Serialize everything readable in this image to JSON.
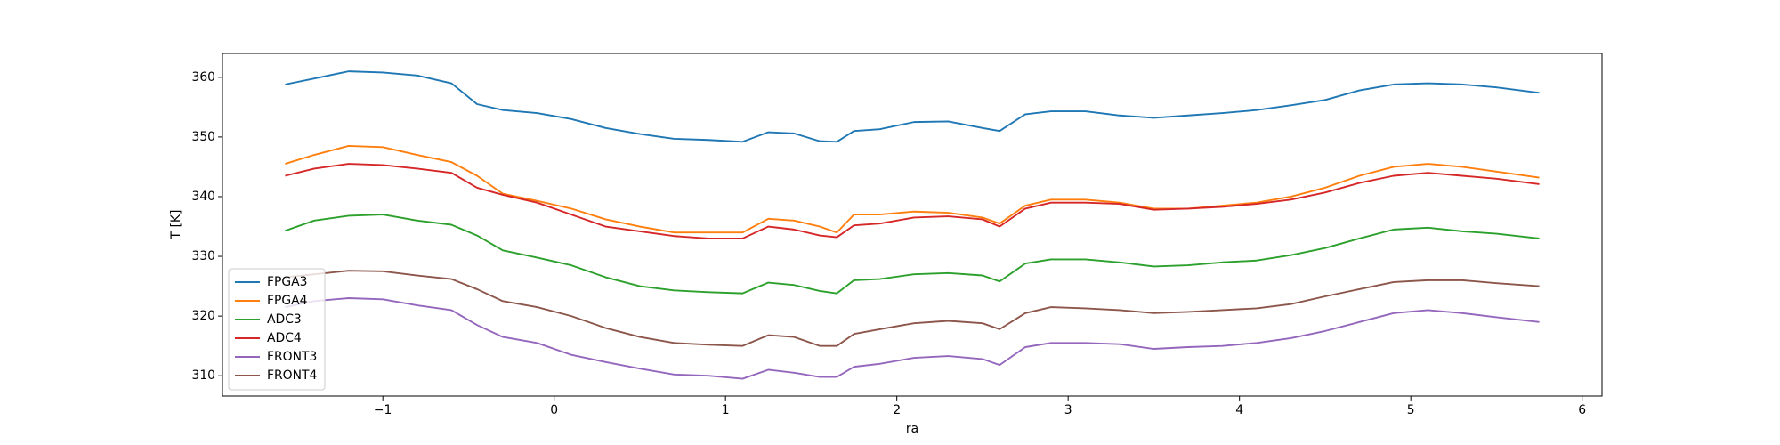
{
  "chart_data": {
    "type": "line",
    "xlabel": "ra",
    "ylabel": "T [K]",
    "x": [
      -1.57,
      -1.4,
      -1.2,
      -1.0,
      -0.8,
      -0.6,
      -0.45,
      -0.3,
      -0.1,
      0.1,
      0.3,
      0.5,
      0.7,
      0.9,
      1.1,
      1.25,
      1.4,
      1.55,
      1.65,
      1.75,
      1.9,
      2.1,
      2.3,
      2.5,
      2.6,
      2.75,
      2.9,
      3.1,
      3.3,
      3.5,
      3.7,
      3.9,
      4.1,
      4.3,
      4.5,
      4.7,
      4.9,
      5.1,
      5.3,
      5.5,
      5.75
    ],
    "series": [
      {
        "name": "FPGA3",
        "color": "#1f77b4",
        "values": [
          358.8,
          359.8,
          361.0,
          360.8,
          360.3,
          359.0,
          355.5,
          354.5,
          354.0,
          353.0,
          351.5,
          350.5,
          349.7,
          349.5,
          349.2,
          350.8,
          350.6,
          349.3,
          349.2,
          351.0,
          351.3,
          352.5,
          352.6,
          351.5,
          351.0,
          353.8,
          354.3,
          354.3,
          353.6,
          353.2,
          353.6,
          354.0,
          354.5,
          355.3,
          356.2,
          357.8,
          358.8,
          359.0,
          358.8,
          358.3,
          357.4
        ]
      },
      {
        "name": "FPGA4",
        "color": "#ff7f0e",
        "values": [
          345.5,
          347.0,
          348.5,
          348.3,
          347.0,
          345.8,
          343.5,
          340.5,
          339.3,
          338.0,
          336.2,
          335.0,
          334.0,
          334.0,
          334.0,
          336.3,
          336.0,
          335.0,
          334.0,
          337.0,
          337.0,
          337.5,
          337.3,
          336.5,
          335.5,
          338.5,
          339.5,
          339.5,
          339.0,
          338.0,
          338.0,
          338.5,
          339.0,
          340.0,
          341.5,
          343.5,
          345.0,
          345.5,
          345.0,
          344.2,
          343.2
        ]
      },
      {
        "name": "ADC3",
        "color": "#2ca02c",
        "values": [
          334.3,
          336.0,
          336.8,
          337.0,
          336.0,
          335.3,
          333.5,
          331.0,
          329.8,
          328.5,
          326.5,
          325.0,
          324.3,
          324.0,
          323.8,
          325.6,
          325.2,
          324.2,
          323.8,
          326.0,
          326.2,
          327.0,
          327.2,
          326.8,
          325.8,
          328.8,
          329.5,
          329.5,
          329.0,
          328.3,
          328.5,
          329.0,
          329.3,
          330.2,
          331.4,
          333.0,
          334.5,
          334.8,
          334.2,
          333.8,
          333.0
        ]
      },
      {
        "name": "ADC4",
        "color": "#d62728",
        "values": [
          343.5,
          344.7,
          345.5,
          345.3,
          344.7,
          344.0,
          341.5,
          340.3,
          339.0,
          337.0,
          335.0,
          334.2,
          333.4,
          333.0,
          333.0,
          335.0,
          334.5,
          333.5,
          333.2,
          335.2,
          335.5,
          336.5,
          336.7,
          336.2,
          335.0,
          338.0,
          339.0,
          339.0,
          338.8,
          337.8,
          338.0,
          338.3,
          338.8,
          339.5,
          340.7,
          342.3,
          343.5,
          344.0,
          343.5,
          343.0,
          342.1
        ]
      },
      {
        "name": "FRONT3",
        "color": "#9467bd",
        "values": [
          321.5,
          322.5,
          323.0,
          322.8,
          321.8,
          321.0,
          318.5,
          316.5,
          315.5,
          313.5,
          312.3,
          311.2,
          310.2,
          310.0,
          309.5,
          311.0,
          310.5,
          309.8,
          309.8,
          311.5,
          312.0,
          313.0,
          313.3,
          312.8,
          311.8,
          314.8,
          315.5,
          315.5,
          315.3,
          314.5,
          314.8,
          315.0,
          315.5,
          316.3,
          317.5,
          319.0,
          320.5,
          321.0,
          320.5,
          319.8,
          319.0
        ]
      },
      {
        "name": "FRONT4",
        "color": "#8c564b",
        "values": [
          326.5,
          327.0,
          327.6,
          327.5,
          326.8,
          326.2,
          324.5,
          322.5,
          321.5,
          320.0,
          318.0,
          316.5,
          315.5,
          315.2,
          315.0,
          316.8,
          316.5,
          315.0,
          315.0,
          317.0,
          317.8,
          318.8,
          319.2,
          318.8,
          317.8,
          320.5,
          321.5,
          321.3,
          321.0,
          320.5,
          320.7,
          321.0,
          321.3,
          322.0,
          323.3,
          324.5,
          325.7,
          326.0,
          326.0,
          325.5,
          325.0
        ]
      }
    ],
    "xlim": [
      -1.936,
      6.116
    ],
    "xticks": [
      {
        "value": -1,
        "label": "−1"
      },
      0,
      1,
      2,
      3,
      4,
      5,
      6
    ],
    "ylim": [
      306.6,
      364.0
    ],
    "yticks": [
      310,
      320,
      330,
      340,
      350,
      360
    ],
    "legend": "lower left"
  }
}
